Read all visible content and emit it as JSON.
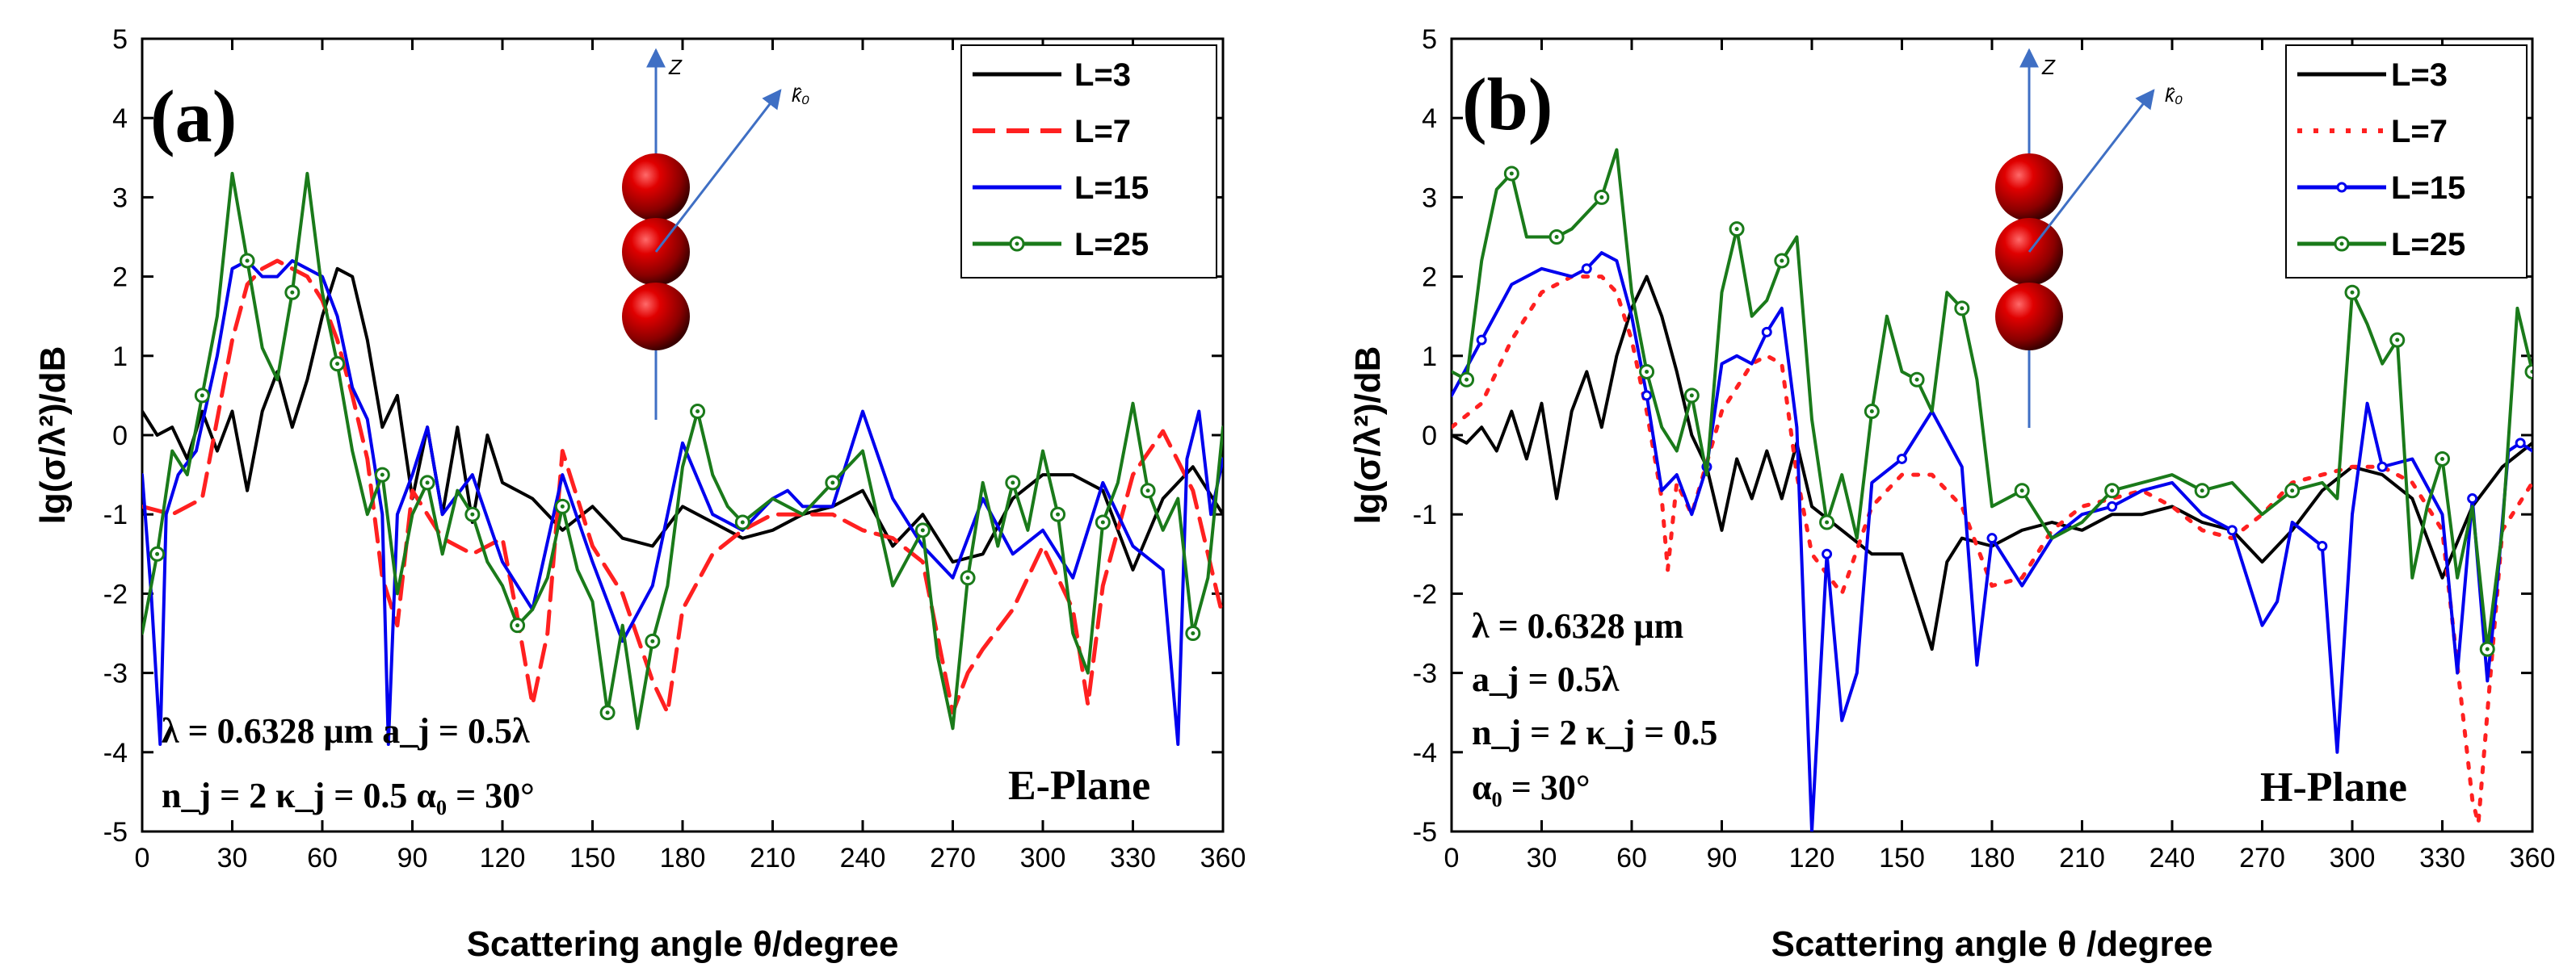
{
  "chart_data": [
    {
      "panel": "(a)",
      "type": "line",
      "plane_label": "E-Plane",
      "xlabel": "Scattering angle θ/degree",
      "ylabel": "lg(σ/λ²)/dB",
      "xlim": [
        0,
        360
      ],
      "ylim": [
        -5,
        5
      ],
      "xticks": [
        0,
        30,
        60,
        90,
        120,
        150,
        180,
        210,
        240,
        270,
        300,
        330,
        360
      ],
      "yticks": [
        -5,
        -4,
        -3,
        -2,
        -1,
        0,
        1,
        2,
        3,
        4,
        5
      ],
      "legend_position": "top-right",
      "params": [
        "λ = 0.6328 μm   a_j = 0.5λ",
        "n_j = 2  κ_j = 0.5  α₀ = 30°"
      ],
      "inset": {
        "axis_label": "Z",
        "vector_label": "k̂₀",
        "spheres": 3
      },
      "series": [
        {
          "name": "L=3",
          "color": "#000000",
          "dash": "solid",
          "x": [
            0,
            5,
            10,
            15,
            20,
            25,
            30,
            35,
            40,
            45,
            50,
            55,
            60,
            65,
            70,
            75,
            80,
            85,
            90,
            95,
            100,
            105,
            110,
            115,
            120,
            130,
            140,
            150,
            160,
            170,
            180,
            190,
            200,
            210,
            220,
            230,
            240,
            250,
            260,
            270,
            280,
            290,
            300,
            310,
            320,
            330,
            340,
            350,
            360
          ],
          "y": [
            0.3,
            0,
            0.1,
            -0.3,
            0.3,
            -0.2,
            0.3,
            -0.7,
            0.3,
            0.8,
            0.1,
            0.7,
            1.5,
            2.1,
            2,
            1.2,
            0.1,
            0.5,
            -0.8,
            0.1,
            -1,
            0.1,
            -1.1,
            0,
            -0.6,
            -0.8,
            -1.2,
            -0.9,
            -1.3,
            -1.4,
            -0.9,
            -1.1,
            -1.3,
            -1.2,
            -1,
            -0.9,
            -0.7,
            -1.4,
            -1,
            -1.6,
            -1.5,
            -0.8,
            -0.5,
            -0.5,
            -0.7,
            -1.7,
            -0.8,
            -0.4,
            -1
          ]
        },
        {
          "name": "L=7",
          "color": "#ff2020",
          "dash": "dash",
          "x": [
            0,
            10,
            20,
            30,
            35,
            40,
            45,
            50,
            55,
            60,
            65,
            70,
            75,
            80,
            85,
            90,
            100,
            110,
            120,
            125,
            130,
            135,
            140,
            150,
            160,
            170,
            175,
            180,
            190,
            200,
            210,
            220,
            230,
            240,
            250,
            260,
            270,
            275,
            280,
            290,
            300,
            310,
            315,
            320,
            330,
            340,
            350,
            360
          ],
          "y": [
            -0.9,
            -1,
            -0.8,
            1.2,
            1.9,
            2.1,
            2.2,
            2.1,
            2,
            1.7,
            1.2,
            0.5,
            -0.3,
            -1.8,
            -2.4,
            -0.7,
            -1.3,
            -1.5,
            -1.3,
            -2.3,
            -3.4,
            -2.5,
            -0.2,
            -1.4,
            -2,
            -3.1,
            -3.5,
            -2.2,
            -1.5,
            -1.2,
            -1,
            -1,
            -1,
            -1.2,
            -1.3,
            -1.6,
            -3.5,
            -3,
            -2.7,
            -2.2,
            -1.4,
            -2.2,
            -3.4,
            -1.9,
            -0.5,
            0.05,
            -0.7,
            -2.3
          ]
        },
        {
          "name": "L=15",
          "color": "#0000ee",
          "dash": "solid",
          "x": [
            0,
            3,
            6,
            8,
            12,
            18,
            25,
            30,
            35,
            40,
            45,
            50,
            55,
            60,
            65,
            70,
            75,
            80,
            82,
            85,
            90,
            95,
            100,
            110,
            120,
            130,
            140,
            150,
            160,
            170,
            180,
            190,
            200,
            210,
            215,
            220,
            230,
            240,
            250,
            260,
            270,
            280,
            290,
            300,
            310,
            320,
            330,
            340,
            345,
            348,
            352,
            356,
            360
          ],
          "y": [
            -0.5,
            -2,
            -3.9,
            -1,
            -0.5,
            -0.2,
            1,
            2.1,
            2.2,
            2,
            2,
            2.2,
            2.1,
            2,
            1.5,
            0.6,
            0.2,
            -1,
            -3.9,
            -1,
            -0.5,
            0.1,
            -1,
            -0.5,
            -1.6,
            -2.2,
            -0.5,
            -1.6,
            -2.6,
            -1.9,
            -0.1,
            -1,
            -1.2,
            -0.8,
            -0.7,
            -0.9,
            -0.9,
            0.3,
            -0.8,
            -1.4,
            -1.8,
            -0.8,
            -1.5,
            -1.2,
            -1.8,
            -0.6,
            -1.4,
            -1.7,
            -3.9,
            -0.3,
            0.3,
            -1,
            -0.3
          ]
        },
        {
          "name": "L=25",
          "color": "#1a7a1a",
          "dash": "solid",
          "marker": "circle-dot",
          "x": [
            0,
            5,
            10,
            15,
            20,
            25,
            30,
            35,
            40,
            45,
            50,
            55,
            60,
            65,
            70,
            75,
            80,
            85,
            90,
            95,
            100,
            105,
            110,
            115,
            120,
            125,
            130,
            135,
            140,
            145,
            150,
            155,
            160,
            165,
            170,
            175,
            180,
            185,
            190,
            195,
            200,
            210,
            220,
            230,
            240,
            250,
            260,
            265,
            270,
            275,
            280,
            285,
            290,
            295,
            300,
            305,
            310,
            315,
            320,
            325,
            330,
            335,
            340,
            345,
            350,
            355,
            360
          ],
          "y": [
            -2.5,
            -1.5,
            -0.2,
            -0.5,
            0.5,
            1.5,
            3.3,
            2.2,
            1.1,
            0.7,
            1.8,
            3.3,
            1.8,
            0.9,
            -0.2,
            -1,
            -0.5,
            -2,
            -1,
            -0.6,
            -1.5,
            -0.7,
            -1,
            -1.6,
            -1.9,
            -2.4,
            -2.2,
            -1.8,
            -0.9,
            -1.7,
            -2.1,
            -3.5,
            -2.4,
            -3.7,
            -2.6,
            -1.9,
            -0.4,
            0.3,
            -0.5,
            -0.9,
            -1.1,
            -0.8,
            -1,
            -0.6,
            -0.2,
            -1.9,
            -1.2,
            -2.8,
            -3.7,
            -1.8,
            -0.6,
            -1.4,
            -0.6,
            -1.2,
            -0.2,
            -1,
            -2.5,
            -3,
            -1.1,
            -0.6,
            0.4,
            -0.7,
            -1.2,
            -0.8,
            -2.5,
            -1.8,
            0.1
          ]
        }
      ]
    },
    {
      "panel": "(b)",
      "type": "line",
      "plane_label": "H-Plane",
      "xlabel": "Scattering angle θ /degree",
      "ylabel": "lg(σ/λ²)/dB",
      "xlim": [
        0,
        360
      ],
      "ylim": [
        -5,
        5
      ],
      "xticks": [
        0,
        30,
        60,
        90,
        120,
        150,
        180,
        210,
        240,
        270,
        300,
        330,
        360
      ],
      "yticks": [
        -5,
        -4,
        -3,
        -2,
        -1,
        0,
        1,
        2,
        3,
        4,
        5
      ],
      "legend_position": "top-right",
      "params": [
        "λ = 0.6328 μm",
        "a_j = 0.5λ",
        "n_j = 2  κ_j = 0.5",
        "α₀ = 30°"
      ],
      "inset": {
        "axis_label": "Z",
        "vector_label": "k̂₀",
        "spheres": 3
      },
      "series": [
        {
          "name": "L=3",
          "color": "#000000",
          "dash": "solid",
          "x": [
            0,
            5,
            10,
            15,
            20,
            25,
            30,
            35,
            40,
            45,
            50,
            55,
            60,
            65,
            70,
            75,
            80,
            85,
            90,
            95,
            100,
            105,
            110,
            115,
            120,
            130,
            140,
            150,
            155,
            160,
            165,
            170,
            180,
            190,
            200,
            210,
            220,
            230,
            240,
            250,
            260,
            270,
            280,
            290,
            300,
            310,
            320,
            330,
            340,
            350,
            360
          ],
          "y": [
            0,
            -0.1,
            0.1,
            -0.2,
            0.3,
            -0.3,
            0.4,
            -0.8,
            0.3,
            0.8,
            0.1,
            1,
            1.6,
            2,
            1.5,
            0.8,
            0,
            -0.4,
            -1.2,
            -0.3,
            -0.8,
            -0.2,
            -0.8,
            -0.1,
            -0.9,
            -1.2,
            -1.5,
            -1.5,
            -2.1,
            -2.7,
            -1.6,
            -1.3,
            -1.4,
            -1.2,
            -1.1,
            -1.2,
            -1,
            -1,
            -0.9,
            -1.1,
            -1.2,
            -1.6,
            -1.2,
            -0.7,
            -0.4,
            -0.5,
            -0.8,
            -1.8,
            -0.9,
            -0.4,
            -0.1
          ]
        },
        {
          "name": "L=7",
          "color": "#ff2020",
          "dash": "dot",
          "x": [
            0,
            10,
            20,
            30,
            40,
            50,
            55,
            60,
            65,
            70,
            72,
            75,
            80,
            90,
            100,
            105,
            110,
            115,
            120,
            130,
            140,
            150,
            160,
            170,
            180,
            190,
            200,
            210,
            220,
            230,
            240,
            250,
            260,
            270,
            280,
            290,
            300,
            310,
            320,
            330,
            335,
            340,
            342,
            345,
            350,
            360
          ],
          "y": [
            0.1,
            0.4,
            1.2,
            1.8,
            2,
            2,
            1.8,
            1.2,
            0.3,
            -0.8,
            -1.7,
            -0.6,
            -1,
            0.3,
            0.9,
            1,
            0.9,
            -0.5,
            -1.5,
            -2,
            -0.9,
            -0.5,
            -0.5,
            -0.9,
            -1.9,
            -1.8,
            -1.2,
            -0.9,
            -0.8,
            -0.7,
            -0.9,
            -1.2,
            -1.3,
            -1,
            -0.6,
            -0.5,
            -0.4,
            -0.4,
            -0.6,
            -1.2,
            -2.9,
            -4.6,
            -4.9,
            -3.5,
            -1.2,
            -0.6
          ]
        },
        {
          "name": "L=15",
          "color": "#0000ee",
          "dash": "solid",
          "marker": "small-circle",
          "x": [
            0,
            10,
            20,
            30,
            40,
            45,
            50,
            55,
            60,
            65,
            70,
            75,
            80,
            85,
            90,
            95,
            100,
            105,
            110,
            115,
            120,
            125,
            130,
            135,
            140,
            150,
            160,
            170,
            175,
            180,
            190,
            200,
            210,
            220,
            230,
            240,
            250,
            260,
            270,
            275,
            280,
            290,
            295,
            300,
            305,
            310,
            320,
            330,
            335,
            340,
            345,
            348,
            352,
            356,
            360
          ],
          "y": [
            0.5,
            1.2,
            1.9,
            2.1,
            2,
            2.1,
            2.3,
            2.2,
            1.5,
            0.5,
            -0.7,
            -0.5,
            -1,
            -0.4,
            0.9,
            1,
            0.9,
            1.3,
            1.6,
            0.1,
            -5,
            -1.5,
            -3.6,
            -3,
            -0.6,
            -0.3,
            0.3,
            -0.4,
            -2.9,
            -1.3,
            -1.9,
            -1.3,
            -1,
            -0.9,
            -0.7,
            -0.6,
            -1,
            -1.2,
            -2.4,
            -2.1,
            -1.1,
            -1.4,
            -4,
            -1,
            0.4,
            -0.4,
            -0.3,
            -1,
            -3,
            -0.8,
            -3.1,
            -2,
            -0.2,
            -0.1,
            -0.2
          ]
        },
        {
          "name": "L=25",
          "color": "#1a7a1a",
          "dash": "solid",
          "marker": "circle-dot",
          "x": [
            0,
            5,
            10,
            15,
            20,
            25,
            30,
            35,
            40,
            45,
            50,
            55,
            60,
            65,
            70,
            75,
            80,
            85,
            90,
            95,
            100,
            105,
            110,
            115,
            120,
            125,
            130,
            135,
            140,
            145,
            150,
            155,
            160,
            165,
            170,
            175,
            180,
            190,
            200,
            210,
            220,
            230,
            240,
            250,
            260,
            270,
            280,
            290,
            295,
            300,
            305,
            310,
            315,
            320,
            325,
            330,
            335,
            340,
            345,
            350,
            355,
            360
          ],
          "y": [
            0.8,
            0.7,
            2.2,
            3.1,
            3.3,
            2.5,
            2.5,
            2.5,
            2.6,
            2.8,
            3,
            3.6,
            1.8,
            0.8,
            0.1,
            -0.2,
            0.5,
            -0.5,
            1.8,
            2.6,
            1.5,
            1.7,
            2.2,
            2.5,
            0.2,
            -1.1,
            -0.5,
            -1.3,
            0.3,
            1.5,
            0.8,
            0.7,
            0.3,
            1.8,
            1.6,
            0.7,
            -0.9,
            -0.7,
            -1.3,
            -1.1,
            -0.7,
            -0.6,
            -0.5,
            -0.7,
            -0.6,
            -1,
            -0.7,
            -0.6,
            -0.8,
            1.8,
            1.4,
            0.9,
            1.2,
            -1.8,
            -0.9,
            -0.3,
            -1.8,
            -0.9,
            -2.7,
            -1.2,
            1.6,
            0.8
          ]
        }
      ]
    }
  ]
}
